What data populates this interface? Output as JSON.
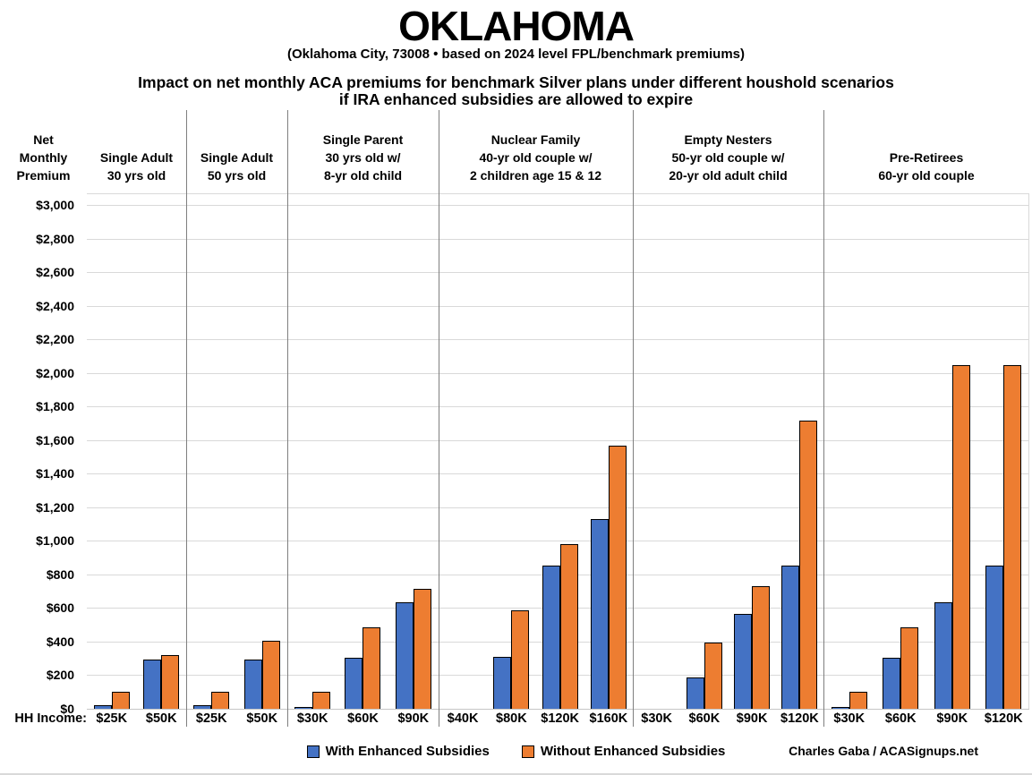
{
  "title": "OKLAHOMA",
  "subtitle": "(Oklahoma City, 73008 • based on 2024 level FPL/benchmark premiums)",
  "heading": {
    "line1": "Impact on net monthly ACA premiums for benchmark Silver plans under different houshold scenarios",
    "line2": "if IRA enhanced subsidies are allowed to expire"
  },
  "y_axis_title_lines": [
    "Net",
    "Monthly",
    "Premium"
  ],
  "hh_income_label": "HH Income:",
  "legend": {
    "with_label": "With Enhanced Subsidies",
    "without_label": "Without Enhanced Subsidies"
  },
  "credit": "Charles Gaba / ACASignups.net",
  "colors": {
    "with_enhanced": "#4472C4",
    "without_enhanced": "#ED7D31",
    "bar_border": "#000000",
    "gridline": "#d9d9d9",
    "divider": "#7f7f7f"
  },
  "chart_data": {
    "type": "bar",
    "title": "Impact on net monthly ACA premiums for benchmark Silver plans under different houshold scenarios if IRA enhanced subsidies are allowed to expire",
    "ylabel": "Net Monthly Premium",
    "ylim": [
      0,
      3000
    ],
    "grid": true,
    "legend_position": "bottom",
    "series_names": [
      "With Enhanced Subsidies",
      "Without Enhanced Subsidies"
    ],
    "yticks": [
      {
        "value": 0,
        "label": "$0"
      },
      {
        "value": 200,
        "label": "$200"
      },
      {
        "value": 400,
        "label": "$400"
      },
      {
        "value": 600,
        "label": "$600"
      },
      {
        "value": 800,
        "label": "$800"
      },
      {
        "value": 1000,
        "label": "$1,000"
      },
      {
        "value": 1200,
        "label": "$1,200"
      },
      {
        "value": 1400,
        "label": "$1,400"
      },
      {
        "value": 1600,
        "label": "$1,600"
      },
      {
        "value": 1800,
        "label": "$1,800"
      },
      {
        "value": 2000,
        "label": "$2,000"
      },
      {
        "value": 2200,
        "label": "$2,200"
      },
      {
        "value": 2400,
        "label": "$2,400"
      },
      {
        "value": 2600,
        "label": "$2,600"
      },
      {
        "value": 2800,
        "label": "$2,800"
      },
      {
        "value": 3000,
        "label": "$3,000"
      }
    ],
    "groups": [
      {
        "title_lines": [
          "Single Adult",
          "30 yrs old"
        ],
        "incomes": [
          "$25K",
          "$50K"
        ],
        "with_enhanced": [
          20,
          295
        ],
        "without_enhanced": [
          100,
          320
        ]
      },
      {
        "title_lines": [
          "Single Adult",
          "50 yrs old"
        ],
        "incomes": [
          "$25K",
          "$50K"
        ],
        "with_enhanced": [
          20,
          295
        ],
        "without_enhanced": [
          100,
          405
        ]
      },
      {
        "title_lines": [
          "Single Parent",
          "30 yrs old w/",
          "8-yr old child"
        ],
        "incomes": [
          "$30K",
          "$60K",
          "$90K"
        ],
        "with_enhanced": [
          5,
          305,
          635
        ],
        "without_enhanced": [
          100,
          485,
          715
        ]
      },
      {
        "title_lines": [
          "Nuclear Family",
          "40-yr old couple w/",
          "2 children age 15 & 12"
        ],
        "incomes": [
          "$40K",
          "$80K",
          "$120K",
          "$160K"
        ],
        "with_enhanced": [
          0,
          310,
          850,
          1130
        ],
        "without_enhanced": [
          0,
          585,
          980,
          1565
        ]
      },
      {
        "title_lines": [
          "Empty Nesters",
          "50-yr old couple w/",
          "20-yr old adult child"
        ],
        "incomes": [
          "$30K",
          "$60K",
          "$90K",
          "$120K"
        ],
        "with_enhanced": [
          0,
          185,
          565,
          850
        ],
        "without_enhanced": [
          0,
          395,
          730,
          1715
        ]
      },
      {
        "title_lines": [
          "Pre-Retirees",
          "60-yr old couple"
        ],
        "incomes": [
          "$30K",
          "$60K",
          "$90K",
          "$120K"
        ],
        "with_enhanced": [
          10,
          305,
          635,
          850
        ],
        "without_enhanced": [
          100,
          485,
          2045,
          2045
        ]
      }
    ]
  }
}
